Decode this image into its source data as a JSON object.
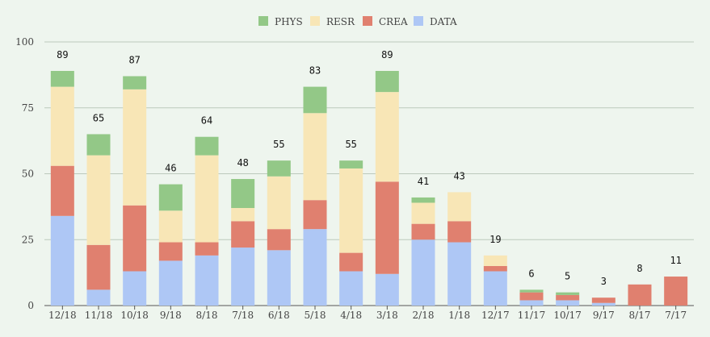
{
  "chart_data": {
    "type": "bar",
    "stacked": true,
    "title": "",
    "xlabel": "",
    "ylabel": "",
    "ylim": [
      0,
      100
    ],
    "yticks": [
      "0",
      "25",
      "50",
      "75",
      "100"
    ],
    "grid": true,
    "legend_position": "top-center",
    "categories": [
      "12/18",
      "11/18",
      "10/18",
      "9/18",
      "8/18",
      "7/18",
      "6/18",
      "5/18",
      "4/18",
      "3/18",
      "2/18",
      "1/18",
      "12/17",
      "11/17",
      "10/17",
      "9/17",
      "8/17",
      "7/17"
    ],
    "totals": [
      "89",
      "65",
      "87",
      "46",
      "64",
      "48",
      "55",
      "83",
      "55",
      "89",
      "41",
      "43",
      "19",
      "6",
      "5",
      "3",
      "8",
      "11"
    ],
    "series": [
      {
        "name": "DATA",
        "color": "#aec7f5",
        "values": [
          34,
          6,
          13,
          17,
          19,
          22,
          21,
          29,
          13,
          12,
          25,
          24,
          13,
          2,
          2,
          1,
          0,
          0
        ]
      },
      {
        "name": "CREA",
        "color": "#e0806f",
        "values": [
          19,
          17,
          25,
          7,
          5,
          10,
          8,
          11,
          7,
          35,
          6,
          8,
          2,
          3,
          2,
          2,
          8,
          11
        ]
      },
      {
        "name": "RESR",
        "color": "#f8e6b6",
        "values": [
          30,
          34,
          44,
          12,
          33,
          5,
          20,
          33,
          32,
          34,
          8,
          11,
          4,
          0,
          0,
          0,
          0,
          0
        ]
      },
      {
        "name": "PHYS",
        "color": "#93c887",
        "values": [
          6,
          8,
          5,
          10,
          7,
          11,
          6,
          10,
          3,
          8,
          2,
          0,
          0,
          1,
          1,
          0,
          0,
          0
        ]
      }
    ],
    "legend_order": [
      "PHYS",
      "RESR",
      "CREA",
      "DATA"
    ],
    "colors": {
      "background": "#eef5ee",
      "grid": "#bcc9bc",
      "axis": "#555555"
    }
  }
}
